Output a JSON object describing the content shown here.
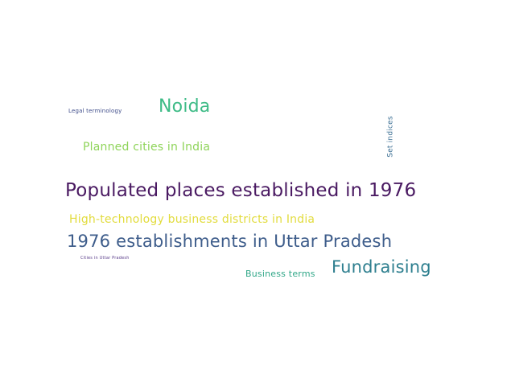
{
  "words": {
    "populated": {
      "text": "Populated places established in 1976",
      "color": "#4a1a62"
    },
    "establishments": {
      "text": "1976 establishments in Uttar Pradesh",
      "color": "#3e5d8b"
    },
    "fundraising": {
      "text": "Fundraising",
      "color": "#2e7f8f"
    },
    "noida": {
      "text": "Noida",
      "color": "#3dbb86"
    },
    "planned": {
      "text": "Planned cities in India",
      "color": "#8fd45a"
    },
    "hightech": {
      "text": "High-technology business districts in India",
      "color": "#e2dc3e"
    },
    "business": {
      "text": "Business terms",
      "color": "#31a788"
    },
    "legal": {
      "text": "Legal terminology",
      "color": "#3f4d8a"
    },
    "cities": {
      "text": "Cities in Uttar Pradesh",
      "color": "#5a3d8a"
    },
    "setindices": {
      "text": "Set indices",
      "color": "#3a6e93"
    }
  }
}
